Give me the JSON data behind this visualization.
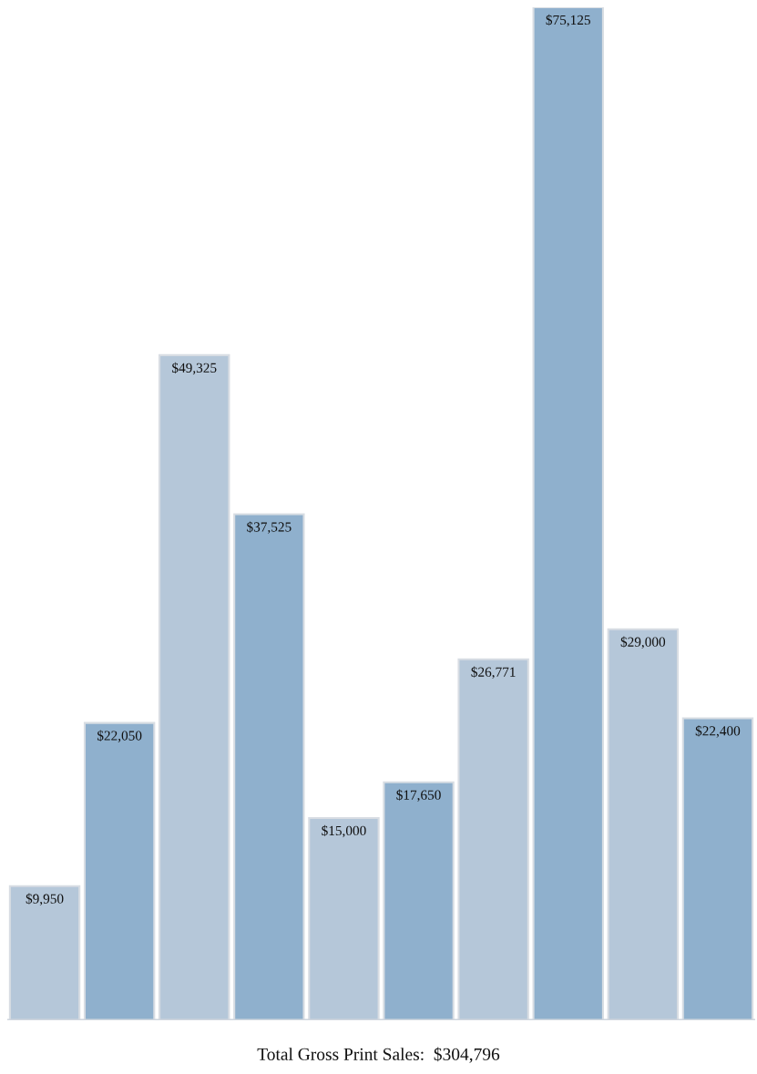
{
  "chart_data": {
    "type": "bar",
    "categories": [
      null,
      null,
      null,
      null,
      null,
      null,
      null,
      null,
      null,
      null
    ],
    "values": [
      9950,
      22050,
      49325,
      37525,
      15000,
      17650,
      26771,
      75125,
      29000,
      22400
    ],
    "colors": [
      "#b5c7d9",
      "#8fb0cd",
      "#b5c7d9",
      "#8fb0cd",
      "#b5c7d9",
      "#8fb0cd",
      "#b5c7d9",
      "#8fb0cd",
      "#b5c7d9",
      "#8fb0cd"
    ],
    "value_labels": [
      "$9,950",
      "$22,050",
      "$49,325",
      "$37,525",
      "$15,000",
      "$17,650",
      "$26,771",
      "$75,125",
      "$29,000",
      "$22,400"
    ],
    "annotations": [
      "Total Gross Print Sales:  $304,796"
    ],
    "grid": false
  }
}
